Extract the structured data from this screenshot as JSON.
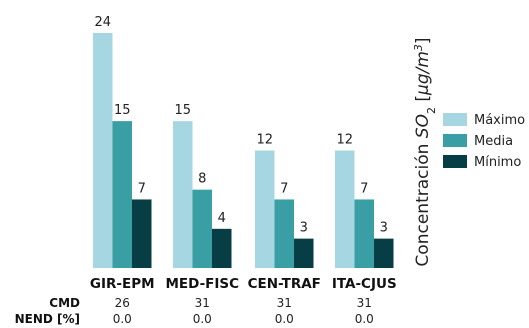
{
  "chart_data": {
    "type": "bar",
    "categories": [
      "GIR-EPM",
      "MED-FISC",
      "CEN-TRAF",
      "ITA-CJUS"
    ],
    "series": [
      {
        "name": "Máximo",
        "values": [
          24,
          15,
          12,
          12
        ],
        "color": "#a6d6e2"
      },
      {
        "name": "Media",
        "values": [
          15,
          8,
          7,
          7
        ],
        "color": "#3a9ea5"
      },
      {
        "name": "Mínimo",
        "values": [
          7,
          4,
          3,
          3
        ],
        "color": "#073d44"
      }
    ],
    "ylabel": {
      "prefix": "Concentración ",
      "symbol": "SO",
      "subscript": "2",
      "unit_open": " [",
      "unit": "μg/m",
      "superscript": "3",
      "unit_close": "]"
    },
    "ylim": [
      0,
      24
    ],
    "grid": false,
    "legend": "right",
    "table": {
      "rows": [
        {
          "label": "CMD",
          "values": [
            "26",
            "31",
            "31",
            "31"
          ]
        },
        {
          "label": "NEND [%]",
          "values": [
            "0.0",
            "0.0",
            "0.0",
            "0.0"
          ]
        }
      ]
    }
  }
}
